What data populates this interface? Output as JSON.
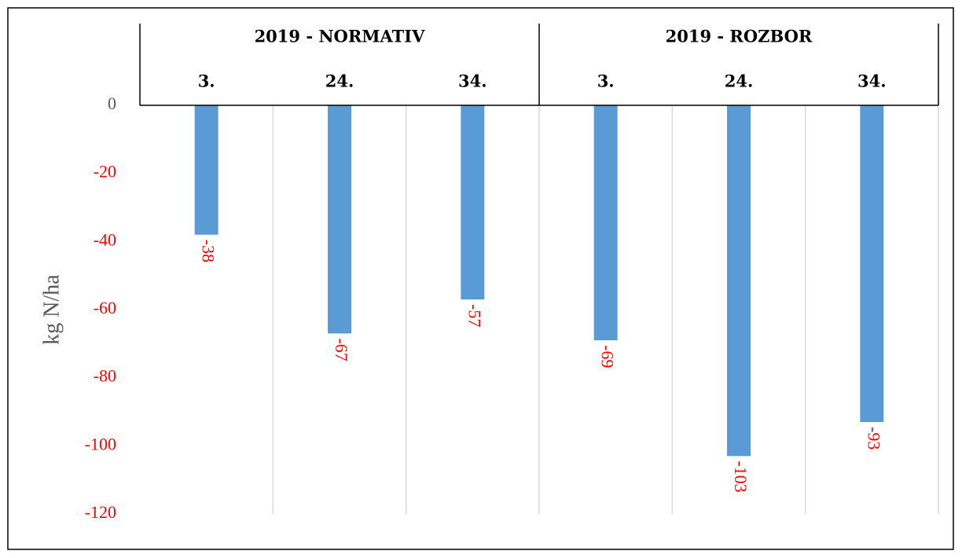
{
  "chart_data": {
    "type": "bar",
    "ylabel": "kg N/ha",
    "groups": [
      "2019 - NORMATIV",
      "2019 - ROZBOR"
    ],
    "categories": [
      "3.",
      "24.",
      "34.",
      "3.",
      "24.",
      "34."
    ],
    "values": [
      -38,
      -67,
      -57,
      -69,
      -103,
      -93
    ],
    "color": "#5b9bd5",
    "label_color": "#ff0000",
    "ylim": [
      -120,
      0
    ],
    "yticks": [
      0,
      -20,
      -40,
      -60,
      -80,
      -100,
      -120
    ],
    "tick_color": "#595959",
    "negative_tick_color": "#ff0000"
  }
}
